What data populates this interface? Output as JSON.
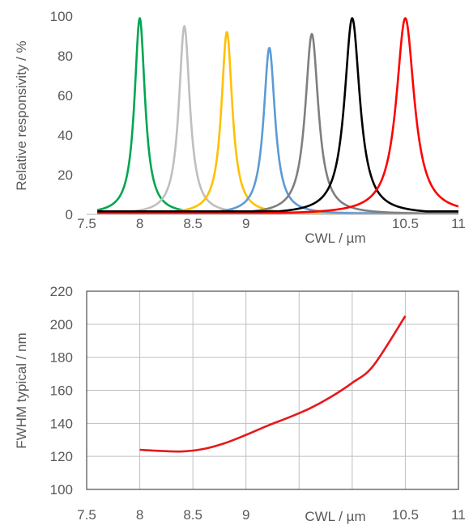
{
  "chart_data": [
    {
      "type": "line",
      "name": "responsivity",
      "ylabel": "Relative responsivity / %",
      "xlabel": "CWL / µm",
      "xlim": [
        7.5,
        11
      ],
      "ylim": [
        0,
        100
      ],
      "xticks": [
        "7.5",
        "8",
        "8.5",
        "9",
        "",
        "10.5",
        "11"
      ],
      "xtick_values": [
        7.5,
        8,
        8.5,
        9,
        10,
        10.5,
        11
      ],
      "yticks": [
        "0",
        "20",
        "40",
        "60",
        "80",
        "100"
      ],
      "ytick_values": [
        0,
        20,
        40,
        60,
        80,
        100
      ],
      "grid": false,
      "series": [
        {
          "color": "#00a651",
          "center": 8.0,
          "peak": 99,
          "fwhm": 0.12,
          "baseline": 0.5
        },
        {
          "color": "#bfbfbf",
          "center": 8.42,
          "peak": 95,
          "fwhm": 0.125,
          "baseline": 0.8
        },
        {
          "color": "#ffc000",
          "center": 8.82,
          "peak": 92,
          "fwhm": 0.125,
          "baseline": 0.5
        },
        {
          "color": "#5b9bd5",
          "center": 9.22,
          "peak": 84,
          "fwhm": 0.13,
          "baseline": 0.5
        },
        {
          "color": "#7f7f7f",
          "center": 9.62,
          "peak": 91,
          "fwhm": 0.15,
          "baseline": 0.5
        },
        {
          "color": "#000000",
          "center": 10.0,
          "peak": 99,
          "fwhm": 0.175,
          "baseline": 1.5
        },
        {
          "color": "#ff0000",
          "center": 10.5,
          "peak": 99,
          "fwhm": 0.205,
          "baseline": 0.5
        }
      ]
    },
    {
      "type": "line",
      "name": "fwhm",
      "ylabel": "FWHM typical / nm",
      "xlabel": "CWL / µm",
      "xlim": [
        7.5,
        11
      ],
      "ylim": [
        100,
        220
      ],
      "xticks": [
        "7.5",
        "8",
        "8.5",
        "9",
        "",
        "10.5",
        "11"
      ],
      "xtick_values": [
        7.5,
        8,
        8.5,
        9,
        10,
        10.5,
        11
      ],
      "yticks": [
        "100",
        "120",
        "140",
        "160",
        "180",
        "200",
        "220"
      ],
      "ytick_values": [
        100,
        120,
        140,
        160,
        180,
        200,
        220
      ],
      "grid": true,
      "series": [
        {
          "color": "#e31a1c",
          "x": [
            8.0,
            8.2,
            8.4,
            8.6,
            8.8,
            9.0,
            9.2,
            9.4,
            9.6,
            9.8,
            10.0,
            10.2,
            10.5
          ],
          "y": [
            124,
            123.3,
            123,
            124.5,
            128,
            133,
            138.5,
            143.5,
            149,
            156,
            164.5,
            175,
            205
          ]
        }
      ]
    }
  ]
}
